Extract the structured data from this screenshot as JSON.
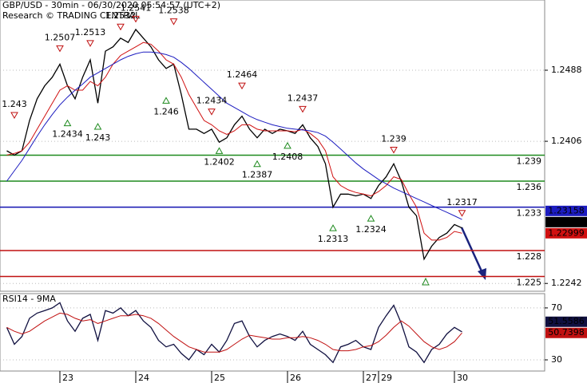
{
  "chart_data": [
    {
      "type": "line",
      "title": "GBP/USD - 30min - 06/30/2020 05:54:57 (UTC+2)",
      "subtitle": "Research © TRADING CENTRAL",
      "categories": [
        null,
        null,
        null,
        null,
        null,
        null,
        null,
        "23",
        null,
        null,
        null,
        null,
        null,
        null,
        null,
        null,
        null,
        "24",
        null,
        null,
        null,
        null,
        null,
        null,
        null,
        null,
        null,
        "25",
        null,
        null,
        null,
        null,
        null,
        null,
        null,
        null,
        null,
        "26",
        null,
        null,
        null,
        null,
        null,
        null,
        null,
        null,
        null,
        "27",
        null,
        "29",
        null,
        null,
        null,
        null,
        null,
        null,
        null,
        null,
        null,
        "30",
        null,
        null,
        null,
        null,
        null,
        null,
        null,
        null,
        null,
        null,
        null,
        null
      ],
      "series": [
        {
          "color": "#000000",
          "values": [
            1.2395,
            1.239,
            1.2395,
            1.243,
            1.2455,
            1.247,
            1.248,
            1.2495,
            1.247,
            1.2455,
            1.248,
            1.25,
            1.245,
            1.251,
            1.2515,
            1.2525,
            1.252,
            1.2535,
            1.2525,
            1.2515,
            1.25,
            1.249,
            1.2495,
            1.246,
            1.242,
            1.242,
            1.2415,
            1.242,
            1.2405,
            1.241,
            1.2425,
            1.2435,
            1.242,
            1.241,
            1.242,
            1.2415,
            1.242,
            1.2418,
            1.2415,
            1.2425,
            1.241,
            1.24,
            1.238,
            1.233,
            1.2345,
            1.2345,
            1.2343,
            1.2345,
            1.234,
            1.2355,
            1.2365,
            1.238,
            1.236,
            1.233,
            1.232,
            1.227,
            1.2285,
            1.2295,
            1.23,
            1.231,
            1.2306,
            null,
            null,
            null,
            null,
            null,
            null,
            null,
            null,
            null,
            null,
            null
          ]
        },
        {
          "color": "#d01010",
          "values": [
            1.239,
            1.2392,
            1.2395,
            1.2405,
            1.242,
            1.2435,
            1.245,
            1.2465,
            1.247,
            1.2465,
            1.2465,
            1.2475,
            1.247,
            1.248,
            1.2495,
            1.2505,
            1.251,
            1.2515,
            1.252,
            1.2518,
            1.251,
            1.25,
            1.2495,
            1.248,
            1.246,
            1.2445,
            1.243,
            1.2425,
            1.2418,
            1.2414,
            1.2418,
            1.2425,
            1.2425,
            1.242,
            1.2418,
            1.2418,
            1.2418,
            1.2418,
            1.2417,
            1.242,
            1.2415,
            1.2408,
            1.2395,
            1.2365,
            1.2355,
            1.235,
            1.2347,
            1.2345,
            1.2343,
            1.2348,
            1.2355,
            1.2365,
            1.2362,
            1.2345,
            1.233,
            1.23,
            1.2292,
            1.2292,
            1.2295,
            1.2302,
            1.22999,
            null,
            null,
            null,
            null,
            null,
            null,
            null,
            null,
            null,
            null,
            null
          ]
        },
        {
          "color": "#1c1cc0",
          "values": [
            1.236,
            1.2372,
            1.2384,
            1.2398,
            1.2412,
            1.2425,
            1.2437,
            1.2448,
            1.2457,
            1.2465,
            1.2472,
            1.248,
            1.2485,
            1.249,
            1.2495,
            1.25,
            1.2504,
            1.2507,
            1.2509,
            1.2509,
            1.2508,
            1.2506,
            1.2503,
            1.2497,
            1.249,
            1.2482,
            1.2474,
            1.2466,
            1.2458,
            1.245,
            1.2445,
            1.244,
            1.2435,
            1.2431,
            1.2428,
            1.2425,
            1.2423,
            1.2421,
            1.242,
            1.2419,
            1.2418,
            1.2416,
            1.2412,
            1.2405,
            1.2397,
            1.2389,
            1.2381,
            1.2374,
            1.2368,
            1.2362,
            1.2357,
            1.2352,
            1.2348,
            1.2344,
            1.234,
            1.2336,
            1.2332,
            1.2328,
            1.2324,
            1.232,
            1.23158,
            null,
            null,
            null,
            null,
            null,
            null,
            null,
            null,
            null,
            null,
            null
          ]
        }
      ],
      "highs": [
        null,
        1.243,
        null,
        null,
        null,
        null,
        null,
        1.2507,
        null,
        null,
        null,
        1.2513,
        null,
        null,
        null,
        1.2532,
        null,
        1.2541,
        null,
        null,
        null,
        null,
        1.2538,
        null,
        null,
        null,
        null,
        1.2434,
        null,
        null,
        null,
        1.2464,
        null,
        null,
        null,
        null,
        null,
        null,
        null,
        1.2437,
        null,
        null,
        null,
        null,
        null,
        null,
        null,
        null,
        null,
        null,
        null,
        1.239,
        null,
        null,
        null,
        null,
        null,
        null,
        null,
        null,
        1.2317,
        null,
        null,
        null,
        null,
        null,
        null,
        null,
        null,
        null,
        null,
        null
      ],
      "lows": [
        null,
        null,
        null,
        null,
        null,
        null,
        null,
        null,
        1.2434,
        null,
        null,
        null,
        1.243,
        null,
        null,
        null,
        null,
        null,
        null,
        null,
        null,
        1.246,
        null,
        null,
        null,
        null,
        null,
        null,
        1.2402,
        null,
        null,
        null,
        null,
        1.2387,
        null,
        null,
        null,
        1.2408,
        null,
        null,
        null,
        null,
        null,
        1.2313,
        null,
        null,
        null,
        null,
        1.2324,
        null,
        null,
        null,
        null,
        null,
        null,
        null,
        null,
        null,
        null,
        null,
        null,
        null,
        null,
        null,
        null,
        null,
        null,
        null,
        null,
        null,
        null,
        null
      ],
      "levels": [
        {
          "value": 1.239,
          "color": "#1e8a1e"
        },
        {
          "value": 1.236,
          "color": "#1e8a1e"
        },
        {
          "value": 1.233,
          "color": "#1010b0"
        },
        {
          "value": 1.228,
          "color": "#c01010"
        },
        {
          "value": 1.225,
          "color": "#c01010"
        }
      ],
      "ylim": [
        1.2233,
        1.2569
      ],
      "yticks": [
        1.2242,
        1.2406,
        1.2488
      ],
      "grid": true
    },
    {
      "type": "line",
      "title": "RSI14 - 9MA",
      "series": [
        {
          "color": "#101040",
          "values": [
            55,
            42,
            48,
            62,
            66,
            68,
            70,
            74,
            60,
            52,
            62,
            65,
            45,
            68,
            66,
            70,
            64,
            68,
            60,
            55,
            45,
            40,
            42,
            35,
            30,
            38,
            34,
            42,
            36,
            45,
            58,
            60,
            48,
            40,
            45,
            48,
            50,
            48,
            45,
            52,
            42,
            38,
            34,
            28,
            40,
            42,
            45,
            40,
            38,
            55,
            64,
            72,
            58,
            40,
            36,
            28,
            38,
            42,
            50,
            55,
            51.5586,
            null,
            null,
            null,
            null,
            null,
            null,
            null,
            null,
            null,
            null,
            null
          ]
        },
        {
          "color": "#c01010",
          "values": [
            55,
            52,
            50,
            52,
            56,
            60,
            63,
            66,
            65,
            62,
            60,
            61,
            58,
            60,
            62,
            64,
            64,
            65,
            64,
            62,
            58,
            53,
            48,
            44,
            40,
            38,
            36,
            36,
            36,
            38,
            42,
            46,
            49,
            48,
            47,
            46,
            46,
            47,
            47,
            48,
            47,
            45,
            42,
            38,
            37,
            37,
            38,
            40,
            41,
            44,
            49,
            55,
            60,
            56,
            50,
            44,
            40,
            38,
            40,
            44,
            50.7398,
            null,
            null,
            null,
            null,
            null,
            null,
            null,
            null,
            null,
            null,
            null
          ]
        }
      ],
      "ylim": [
        21.4,
        81
      ],
      "yticks": [
        30,
        70
      ],
      "grid": true
    }
  ]
}
